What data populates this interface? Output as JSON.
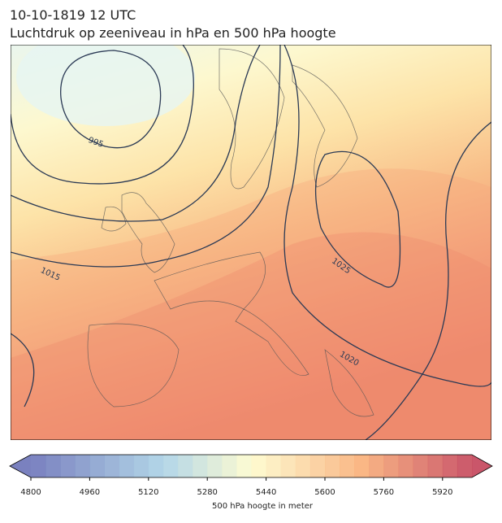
{
  "header": {
    "title": "10-10-1819 12 UTC",
    "subtitle": "Luchtdruk op zeeniveau in hPa en 500 hPa hoogte"
  },
  "contour_labels": [
    995,
    1015,
    1025,
    1020
  ],
  "colorbar": {
    "label": "500 hPa hoogte in meter",
    "lim": [
      4800,
      6000
    ],
    "ticks": [
      4800,
      4960,
      5120,
      5280,
      5440,
      5600,
      5760,
      5920
    ]
  }
}
